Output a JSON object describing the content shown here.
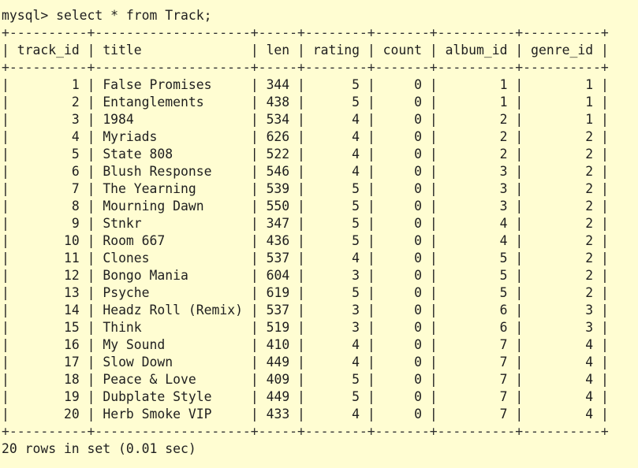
{
  "terminal": {
    "prompt": "mysql> ",
    "command": "select * from Track;",
    "footer": "20 rows in set (0.01 sec)"
  },
  "table": {
    "columns": [
      "track_id",
      "title",
      "len",
      "rating",
      "count",
      "album_id",
      "genre_id"
    ],
    "rows": [
      [
        "1",
        "False Promises",
        "344",
        "5",
        "0",
        "1",
        "1"
      ],
      [
        "2",
        "Entanglements",
        "438",
        "5",
        "0",
        "1",
        "1"
      ],
      [
        "3",
        "1984",
        "534",
        "4",
        "0",
        "2",
        "1"
      ],
      [
        "4",
        "Myriads",
        "626",
        "4",
        "0",
        "2",
        "2"
      ],
      [
        "5",
        "State 808",
        "522",
        "4",
        "0",
        "2",
        "2"
      ],
      [
        "6",
        "Blush Response",
        "546",
        "4",
        "0",
        "3",
        "2"
      ],
      [
        "7",
        "The Yearning",
        "539",
        "5",
        "0",
        "3",
        "2"
      ],
      [
        "8",
        "Mourning Dawn",
        "550",
        "5",
        "0",
        "3",
        "2"
      ],
      [
        "9",
        "Stnkr",
        "347",
        "5",
        "0",
        "4",
        "2"
      ],
      [
        "10",
        "Room 667",
        "436",
        "5",
        "0",
        "4",
        "2"
      ],
      [
        "11",
        "Clones",
        "537",
        "4",
        "0",
        "5",
        "2"
      ],
      [
        "12",
        "Bongo Mania",
        "604",
        "3",
        "0",
        "5",
        "2"
      ],
      [
        "13",
        "Psyche",
        "619",
        "5",
        "0",
        "5",
        "2"
      ],
      [
        "14",
        "Headz Roll (Remix)",
        "537",
        "3",
        "0",
        "6",
        "3"
      ],
      [
        "15",
        "Think",
        "519",
        "3",
        "0",
        "6",
        "3"
      ],
      [
        "16",
        "My Sound",
        "410",
        "4",
        "0",
        "7",
        "4"
      ],
      [
        "17",
        "Slow Down",
        "449",
        "4",
        "0",
        "7",
        "4"
      ],
      [
        "18",
        "Peace & Love",
        "409",
        "5",
        "0",
        "7",
        "4"
      ],
      [
        "19",
        "Dubplate Style",
        "449",
        "5",
        "0",
        "7",
        "4"
      ],
      [
        "20",
        "Herb Smoke VIP",
        "433",
        "4",
        "0",
        "7",
        "4"
      ]
    ]
  },
  "colors": {
    "background": "#fffdd2",
    "text": "#202020"
  }
}
